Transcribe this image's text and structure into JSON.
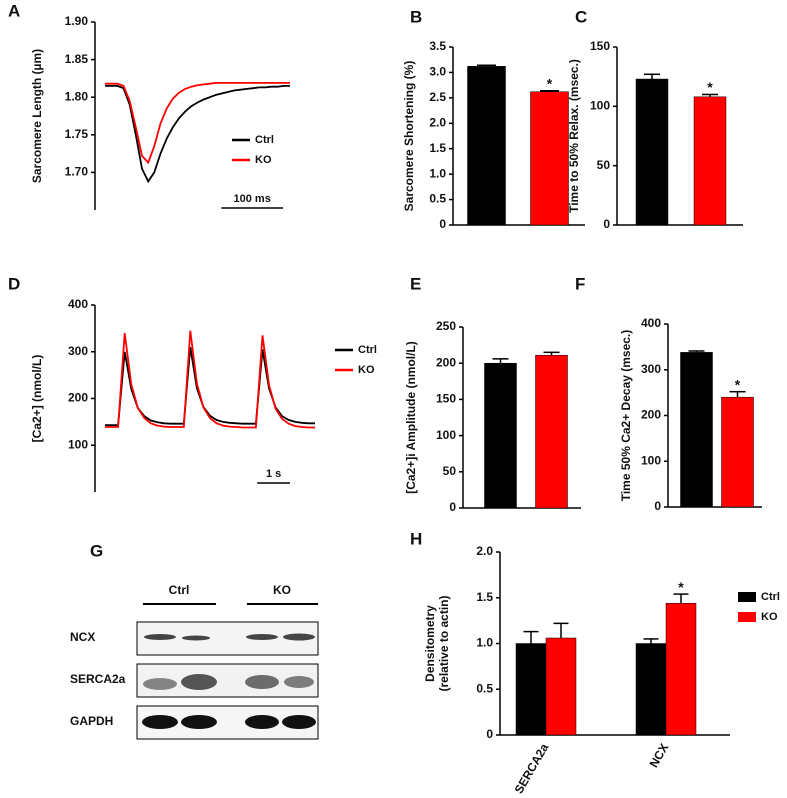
{
  "chart_data": [
    {
      "panel": "A",
      "type": "line",
      "ylabel": [
        "Sarcomere Length (µm)"
      ],
      "x": [
        0,
        10,
        20,
        30,
        40,
        50,
        60,
        70,
        80,
        90,
        100,
        110,
        120,
        130,
        140,
        150,
        160,
        170,
        180,
        190,
        200,
        210,
        220,
        230,
        240,
        250,
        260,
        270,
        280,
        290,
        300
      ],
      "xlim": [
        0,
        300
      ],
      "series": [
        {
          "name": "Ctrl",
          "color": "#000000",
          "values": [
            1.815,
            1.815,
            1.815,
            1.812,
            1.79,
            1.75,
            1.705,
            1.688,
            1.7,
            1.725,
            1.745,
            1.76,
            1.772,
            1.781,
            1.788,
            1.793,
            1.797,
            1.8,
            1.803,
            1.805,
            1.807,
            1.809,
            1.81,
            1.811,
            1.812,
            1.813,
            1.813,
            1.814,
            1.814,
            1.815,
            1.815
          ]
        },
        {
          "name": "KO",
          "color": "#ff0000",
          "values": [
            1.818,
            1.818,
            1.818,
            1.815,
            1.795,
            1.76,
            1.722,
            1.713,
            1.735,
            1.765,
            1.785,
            1.798,
            1.806,
            1.811,
            1.814,
            1.816,
            1.817,
            1.818,
            1.819,
            1.819,
            1.819,
            1.819,
            1.819,
            1.819,
            1.819,
            1.819,
            1.819,
            1.819,
            1.819,
            1.819,
            1.819
          ]
        }
      ],
      "ylim": [
        1.65,
        1.9
      ],
      "yticks": [
        {
          "value": 1.7,
          "label": "1.70"
        },
        {
          "value": 1.75,
          "label": "1.75"
        },
        {
          "value": 1.8,
          "label": "1.80"
        },
        {
          "value": 1.85,
          "label": "1.85"
        },
        {
          "value": 1.9,
          "label": "1.90"
        }
      ],
      "legend": "lower right",
      "scale_bar": {
        "length": 100,
        "label": "100 ms"
      }
    },
    {
      "panel": "B",
      "type": "bar",
      "ylabel": [
        "Sarcomere Shortening (%)"
      ],
      "categories": [
        null,
        null
      ],
      "values": [
        3.12,
        2.62
      ],
      "errors": [
        0.02,
        0.02
      ],
      "colors": [
        "#000000",
        "#ff0000"
      ],
      "ylim": [
        0,
        3.5
      ],
      "yticks": [
        0,
        0.5,
        {
          "value": 1,
          "label": "1.0"
        },
        1.5,
        {
          "value": 2,
          "label": "2.0"
        },
        2.5,
        {
          "value": 3,
          "label": "3.0"
        },
        3.5
      ],
      "annotations": [
        {
          "text": "*",
          "index": 1
        }
      ]
    },
    {
      "panel": "C",
      "type": "bar",
      "ylabel": [
        "Time to 50% Relax. (msec.)"
      ],
      "categories": [
        null,
        null
      ],
      "values": [
        123,
        108
      ],
      "errors": [
        4,
        2
      ],
      "colors": [
        "#000000",
        "#ff0000"
      ],
      "ylim": [
        0,
        150
      ],
      "yticks": [
        0,
        50,
        100,
        150
      ],
      "annotations": [
        {
          "text": "*",
          "index": 1
        }
      ]
    },
    {
      "panel": "D",
      "type": "line",
      "ylabel": [
        "[Ca2+] (nmol/L)"
      ],
      "x": [
        0,
        0.2,
        0.4,
        0.6,
        0.8,
        1.0,
        1.2,
        1.4,
        1.6,
        1.8,
        2.0,
        2.2,
        2.4,
        2.6,
        2.8,
        3.0,
        3.2,
        3.4,
        3.6,
        3.8,
        4.0,
        4.2,
        4.4,
        4.6,
        4.8,
        5.0,
        5.2,
        5.4,
        5.6,
        5.8,
        6.0,
        6.2,
        6.4
      ],
      "xlim": [
        0,
        6.4
      ],
      "series": [
        {
          "name": "Ctrl",
          "color": "#000000",
          "values": [
            143,
            143,
            143,
            300,
            220,
            180,
            162,
            153,
            149,
            147,
            146,
            146,
            146,
            310,
            222,
            182,
            163,
            154,
            150,
            148,
            147,
            146,
            146,
            146,
            305,
            221,
            181,
            162,
            154,
            150,
            148,
            147,
            147
          ]
        },
        {
          "name": "KO",
          "color": "#ff0000",
          "values": [
            139,
            139,
            139,
            340,
            230,
            180,
            158,
            147,
            142,
            140,
            139,
            139,
            139,
            345,
            232,
            181,
            158,
            147,
            142,
            140,
            139,
            138,
            138,
            138,
            335,
            228,
            178,
            156,
            146,
            141,
            139,
            138,
            138
          ]
        }
      ],
      "ylim": [
        0,
        400
      ],
      "yticks": [
        100,
        200,
        300,
        400
      ],
      "legend": "right",
      "scale_bar": {
        "length": 1,
        "label": "1 s"
      }
    },
    {
      "panel": "E",
      "type": "bar",
      "ylabel": [
        "[Ca2+]i Amplitude (nmol/L)"
      ],
      "categories": [
        null,
        null
      ],
      "values": [
        200,
        211
      ],
      "errors": [
        6,
        4
      ],
      "colors": [
        "#000000",
        "#ff0000"
      ],
      "ylim": [
        0,
        250
      ],
      "yticks": [
        0,
        50,
        100,
        150,
        200,
        250
      ]
    },
    {
      "panel": "F",
      "type": "bar",
      "ylabel": [
        "Time 50% Ca2+ Decay (msec.)"
      ],
      "categories": [
        null,
        null
      ],
      "values": [
        338,
        240
      ],
      "errors": [
        3,
        12
      ],
      "colors": [
        "#000000",
        "#ff0000"
      ],
      "ylim": [
        0,
        400
      ],
      "yticks": [
        0,
        100,
        200,
        300,
        400
      ],
      "annotations": [
        {
          "text": "*",
          "index": 1
        }
      ]
    },
    {
      "panel": "H",
      "type": "bar",
      "ylabel": [
        "Densitometry",
        "(relative to actin)"
      ],
      "categories": [
        "SERCA2a",
        "NCX"
      ],
      "series": [
        {
          "name": "Ctrl",
          "color": "#000000",
          "values": [
            1.0,
            1.0
          ],
          "errors": [
            0.13,
            0.05
          ]
        },
        {
          "name": "KO",
          "color": "#ff0000",
          "values": [
            1.06,
            1.44
          ],
          "errors": [
            0.16,
            0.1
          ]
        }
      ],
      "ylim": [
        0,
        2
      ],
      "yticks": [
        0,
        0.5,
        {
          "value": 1,
          "label": "1.0"
        },
        1.5,
        {
          "value": 2,
          "label": "2.0"
        }
      ],
      "legend": "right",
      "annotations": [
        {
          "text": "*",
          "series": 1,
          "index": 1
        }
      ]
    }
  ],
  "blot": {
    "panel": "G",
    "groups": [
      "Ctrl",
      "KO"
    ],
    "rows": [
      "NCX",
      "SERCA2a",
      "GAPDH"
    ]
  }
}
